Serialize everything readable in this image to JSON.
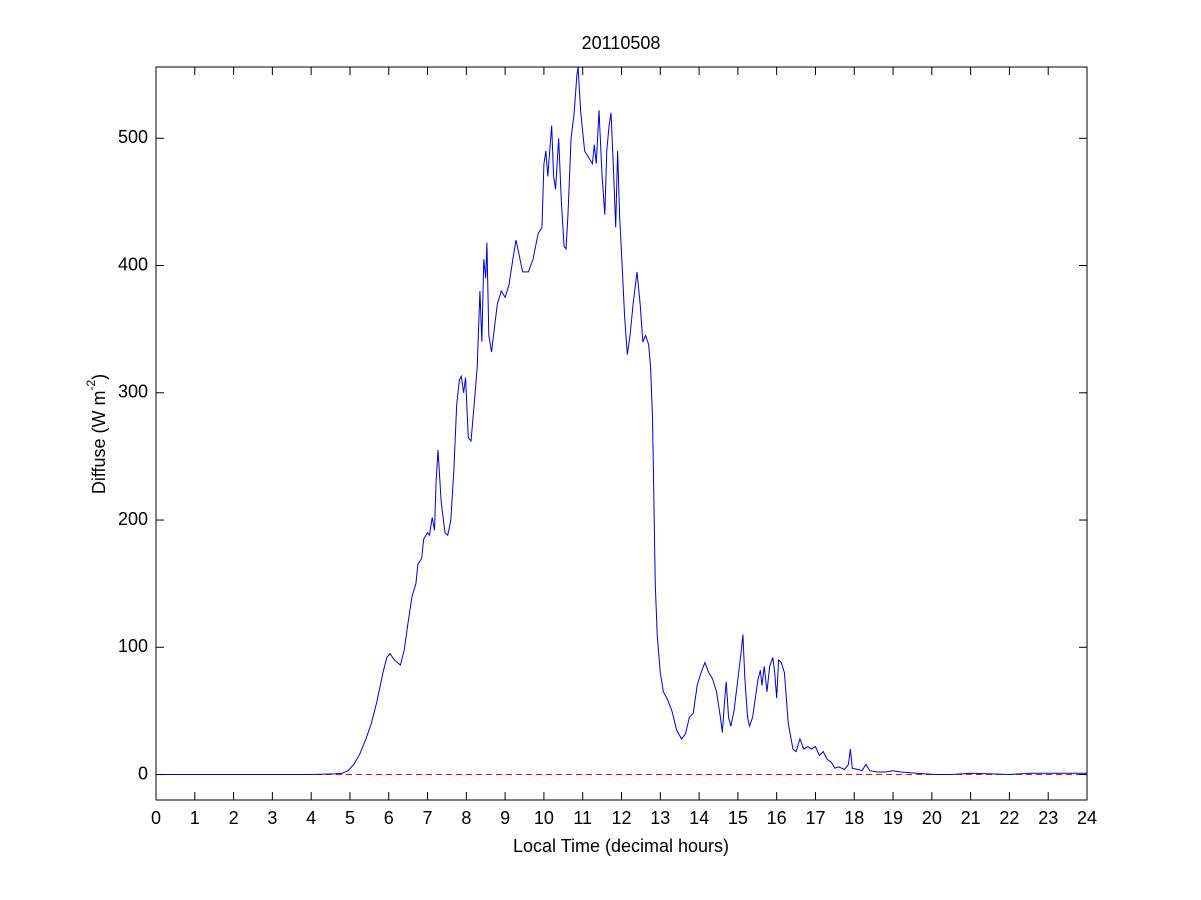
{
  "chart_data": {
    "type": "line",
    "title": "20110508",
    "xlabel": "Local Time (decimal hours)",
    "ylabel": [
      "Diffuse (W m",
      "-2",
      ")"
    ],
    "xlim": [
      0,
      24
    ],
    "ylim": [
      -20,
      556
    ],
    "xticks": [
      0,
      1,
      2,
      3,
      4,
      5,
      6,
      7,
      8,
      9,
      10,
      11,
      12,
      13,
      14,
      15,
      16,
      17,
      18,
      19,
      20,
      21,
      22,
      23,
      24
    ],
    "yticks": [
      0,
      100,
      200,
      300,
      400,
      500
    ],
    "reference_line": {
      "value": 0,
      "color": "#ff0000",
      "style": "dashed"
    },
    "x": [
      0,
      1,
      2,
      3,
      4,
      4.6,
      4.8,
      4.95,
      5.1,
      5.25,
      5.4,
      5.55,
      5.7,
      5.85,
      5.95,
      6.03,
      6.15,
      6.3,
      6.4,
      6.5,
      6.6,
      6.7,
      6.75,
      6.85,
      6.9,
      7.0,
      7.05,
      7.12,
      7.18,
      7.22,
      7.27,
      7.35,
      7.45,
      7.52,
      7.6,
      7.68,
      7.75,
      7.82,
      7.87,
      7.93,
      7.98,
      8.05,
      8.12,
      8.2,
      8.28,
      8.35,
      8.4,
      8.45,
      8.5,
      8.53,
      8.58,
      8.65,
      8.72,
      8.8,
      8.9,
      9.0,
      9.1,
      9.2,
      9.28,
      9.35,
      9.45,
      9.6,
      9.72,
      9.85,
      9.95,
      10.0,
      10.05,
      10.1,
      10.2,
      10.25,
      10.3,
      10.38,
      10.45,
      10.52,
      10.57,
      10.62,
      10.7,
      10.78,
      10.85,
      10.88,
      10.95,
      11.05,
      11.15,
      11.25,
      11.3,
      11.35,
      11.42,
      11.5,
      11.57,
      11.62,
      11.68,
      11.73,
      11.8,
      11.85,
      11.9,
      11.95,
      12.0,
      12.08,
      12.15,
      12.22,
      12.3,
      12.4,
      12.48,
      12.55,
      12.62,
      12.7,
      12.75,
      12.8,
      12.87,
      12.92,
      13.0,
      13.08,
      13.17,
      13.3,
      13.42,
      13.55,
      13.65,
      13.75,
      13.85,
      13.95,
      14.05,
      14.15,
      14.25,
      14.35,
      14.45,
      14.55,
      14.6,
      14.65,
      14.7,
      14.76,
      14.82,
      14.9,
      15.0,
      15.08,
      15.13,
      15.18,
      15.25,
      15.3,
      15.38,
      15.45,
      15.52,
      15.58,
      15.62,
      15.68,
      15.75,
      15.82,
      15.9,
      15.95,
      16.0,
      16.05,
      16.12,
      16.2,
      16.3,
      16.42,
      16.5,
      16.6,
      16.7,
      16.8,
      16.9,
      17.0,
      17.1,
      17.2,
      17.3,
      17.4,
      17.5,
      17.6,
      17.75,
      17.85,
      17.9,
      17.95,
      18.1,
      18.2,
      18.3,
      18.4,
      18.6,
      18.8,
      19.0,
      19.2,
      19.6,
      20.1,
      20.5,
      21,
      21.5,
      22,
      22.5,
      23,
      24
    ],
    "series": [
      {
        "name": "Diffuse",
        "color": "#0000cc",
        "values": [
          0,
          0,
          0,
          0,
          0,
          0.5,
          1,
          3,
          8,
          16,
          27,
          40,
          58,
          80,
          92,
          95,
          90,
          86,
          98,
          120,
          140,
          150,
          165,
          170,
          185,
          190,
          188,
          202,
          192,
          230,
          255,
          215,
          190,
          188,
          200,
          240,
          290,
          310,
          313,
          300,
          312,
          265,
          262,
          290,
          320,
          380,
          340,
          405,
          390,
          418,
          345,
          332,
          350,
          370,
          380,
          375,
          385,
          405,
          420,
          410,
          395,
          395,
          405,
          425,
          430,
          480,
          490,
          470,
          510,
          470,
          460,
          500,
          450,
          415,
          413,
          440,
          500,
          520,
          550,
          556,
          520,
          490,
          485,
          480,
          495,
          480,
          522,
          470,
          440,
          490,
          510,
          520,
          470,
          430,
          490,
          440,
          410,
          360,
          330,
          345,
          370,
          395,
          370,
          340,
          345,
          338,
          320,
          280,
          150,
          110,
          80,
          65,
          60,
          50,
          35,
          28,
          32,
          45,
          48,
          70,
          80,
          88,
          80,
          75,
          65,
          45,
          33,
          55,
          73,
          45,
          38,
          50,
          75,
          95,
          110,
          75,
          45,
          38,
          45,
          60,
          75,
          82,
          70,
          85,
          65,
          85,
          92,
          80,
          60,
          90,
          88,
          80,
          40,
          20,
          18,
          28,
          20,
          22,
          20,
          22,
          15,
          18,
          12,
          10,
          5,
          6,
          4,
          8,
          20,
          5,
          4,
          3,
          8,
          3,
          2,
          2,
          3,
          2,
          1,
          0,
          0,
          1,
          0.5,
          0,
          1,
          1,
          1
        ]
      }
    ]
  }
}
